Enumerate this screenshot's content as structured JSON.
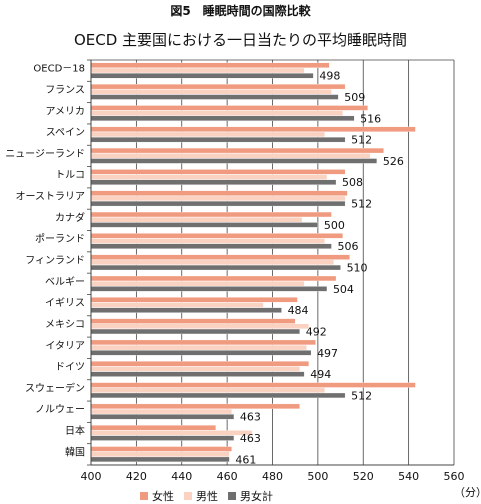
{
  "figure_label": "図5　睡眠時間の国際比較",
  "unit_label": "（分）",
  "colors": {
    "female": "#f09a7f",
    "male": "#fad2c2",
    "total": "#6f6f6f",
    "grid": "#444444"
  },
  "chart_data": {
    "type": "bar",
    "orientation": "horizontal",
    "title": "OECD 主要国における一日当たりの平均睡眠時間",
    "xlabel": "",
    "ylabel": "",
    "xlim": [
      400,
      560
    ],
    "xticks": [
      400,
      420,
      440,
      460,
      480,
      500,
      520,
      540,
      560
    ],
    "grid": true,
    "legend_position": "bottom",
    "categories": [
      "OECD－18",
      "フランス",
      "アメリカ",
      "スペイン",
      "ニュージーランド",
      "トルコ",
      "オーストラリア",
      "カナダ",
      "ポーランド",
      "フィンランド",
      "ベルギー",
      "イギリス",
      "メキシコ",
      "イタリア",
      "ドイツ",
      "スウェーデン",
      "ノルウェー",
      "日本",
      "韓国"
    ],
    "series": [
      {
        "name": "女性",
        "values": [
          505,
          512,
          522,
          543,
          529,
          512,
          513,
          506,
          511,
          514,
          508,
          491,
          490,
          499,
          496,
          543,
          492,
          455,
          462
        ]
      },
      {
        "name": "男性",
        "values": [
          494,
          506,
          511,
          503,
          523,
          504,
          512,
          493,
          503,
          507,
          494,
          476,
          496,
          495,
          492,
          503,
          462,
          471,
          461
        ]
      },
      {
        "name": "男女計",
        "values": [
          498,
          509,
          516,
          512,
          526,
          508,
          512,
          500,
          506,
          510,
          504,
          484,
          492,
          497,
          494,
          512,
          463,
          463,
          461
        ]
      }
    ],
    "value_labels": [
      "498",
      "509",
      "516",
      "512",
      "526",
      "508",
      "512",
      "500",
      "506",
      "510",
      "504",
      "484",
      "492",
      "497",
      "494",
      "512",
      "463",
      "463",
      "461"
    ]
  }
}
